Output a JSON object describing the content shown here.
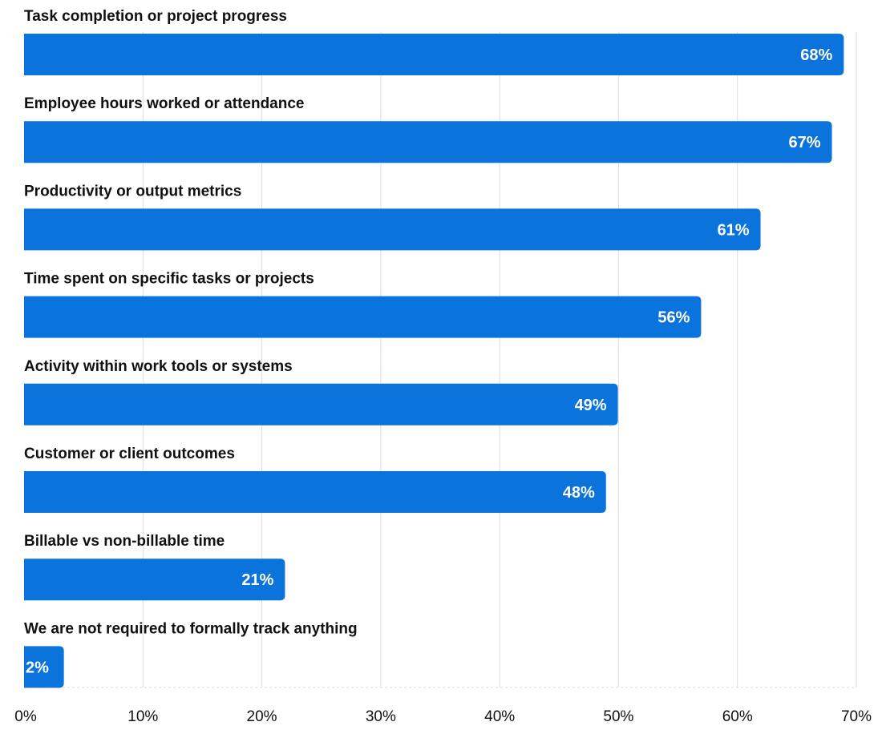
{
  "chart_data": {
    "type": "bar",
    "orientation": "horizontal",
    "categories": [
      "Task completion or project progress",
      "Employee hours worked or attendance",
      "Productivity or output metrics",
      "Time spent on specific tasks or projects",
      "Activity within work tools or systems",
      "Customer or client outcomes",
      "Billable vs non-billable time",
      "We are not required to formally track anything"
    ],
    "values": [
      68,
      67,
      61,
      56,
      49,
      48,
      21,
      2
    ],
    "value_labels": [
      "68%",
      "67%",
      "61%",
      "56%",
      "49%",
      "48%",
      "21%",
      "2%"
    ],
    "xlim": [
      0,
      70
    ],
    "xticks": [
      0,
      10,
      20,
      30,
      40,
      50,
      60,
      70
    ],
    "xtick_labels": [
      "0%",
      "10%",
      "20%",
      "30%",
      "40%",
      "50%",
      "60%",
      "70%"
    ],
    "grid": "vertical",
    "colors": {
      "bar": "#0a73dc",
      "value_label": "#ffffff",
      "text": "#111111",
      "grid": "#dddddd"
    }
  }
}
